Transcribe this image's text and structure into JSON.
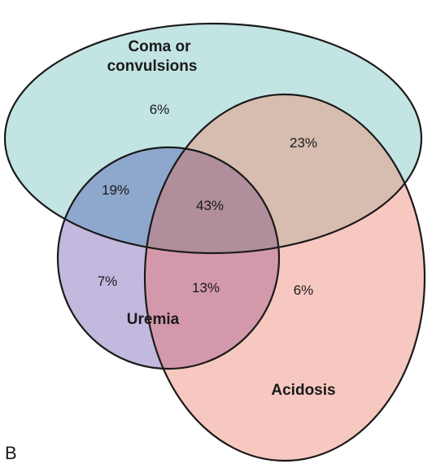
{
  "panel_label": "B",
  "sets": {
    "coma": {
      "label_line1": "Coma or",
      "label_line2": "convulsions",
      "color": "#c2e4e2"
    },
    "uremia": {
      "label": "Uremia",
      "color": "#c3b9df"
    },
    "acidosis": {
      "label": "Acidosis",
      "color": "#f6c8c0"
    }
  },
  "regions": {
    "coma_only": "6%",
    "coma_acidosis": "23%",
    "coma_uremia": "19%",
    "all_three": "43%",
    "uremia_only": "7%",
    "uremia_acidosis": "13%",
    "acidosis_only": "6%"
  },
  "overlap_colors": {
    "coma_uremia": "#8ea7cd",
    "coma_acidosis": "#d6bdb0",
    "uremia_acidosis": "#d399ab",
    "all_three": "#b08e9c"
  },
  "outline_color": "#1a1a1a"
}
